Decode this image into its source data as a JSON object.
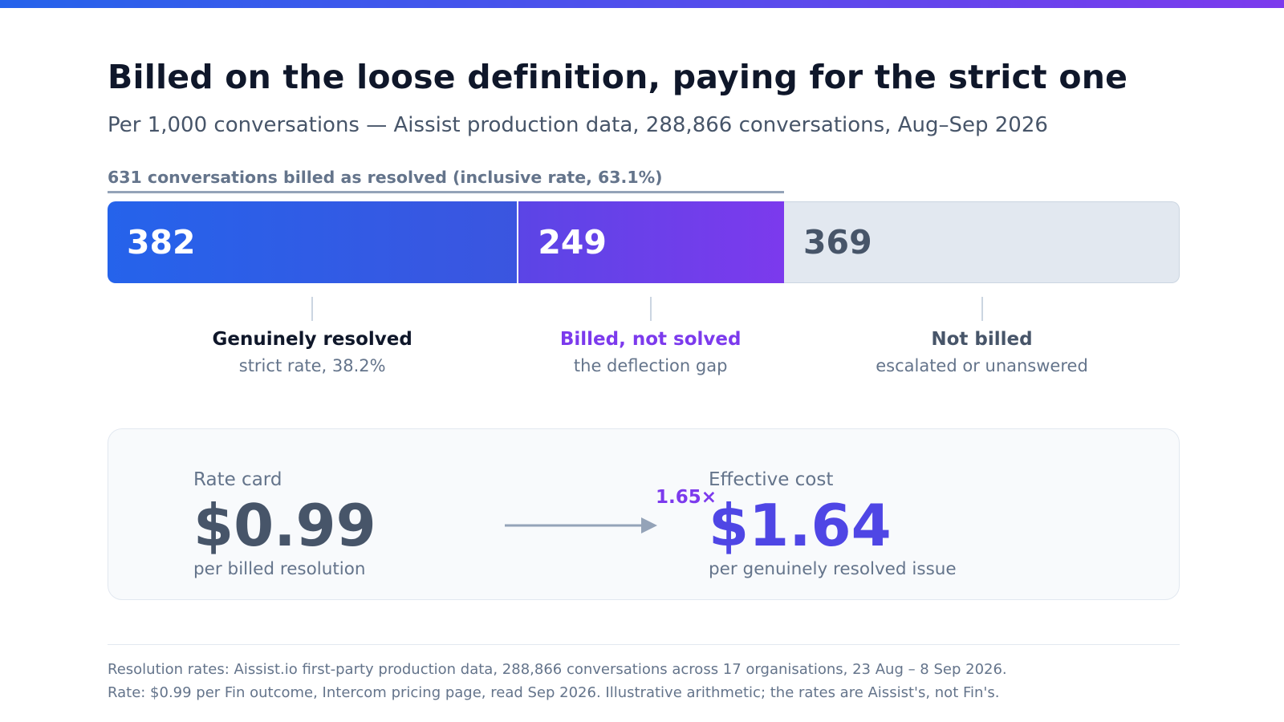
{
  "header": {
    "title": "Billed on the loose definition, paying for the strict one",
    "subtitle": "Per 1,000 conversations — Aissist production data, 288,866 conversations, Aug–Sep 2026"
  },
  "chart_data": {
    "type": "bar",
    "orientation": "horizontal-stacked",
    "total": 1000,
    "bracket": {
      "label": "631 conversations billed as resolved (inclusive rate, 63.1%)",
      "value": 631
    },
    "segments": [
      {
        "value": 382,
        "value_label": "382",
        "name": "Genuinely resolved",
        "description": "strict rate, 38.2%",
        "color": "#2563eb",
        "name_color": "#0f172a"
      },
      {
        "value": 249,
        "value_label": "249",
        "name": "Billed, not solved",
        "description": "the deflection gap",
        "color": "#7c3aed",
        "name_color": "#7c3aed"
      },
      {
        "value": 369,
        "value_label": "369",
        "name": "Not billed",
        "description": "escalated or unanswered",
        "color": "#e2e8f0",
        "name_color": "#475569"
      }
    ]
  },
  "cost_comparison": {
    "left": {
      "kicker": "Rate card",
      "value": "$0.99",
      "caption": "per billed resolution"
    },
    "multiplier": "1.65×",
    "right": {
      "kicker": "Effective cost",
      "value": "$1.64",
      "caption": "per genuinely resolved issue"
    }
  },
  "footnotes": [
    "Resolution rates: Aissist.io first-party production data, 288,866 conversations across 17 organisations, 23 Aug – 8 Sep 2026.",
    "Rate: $0.99 per Fin outcome, Intercom pricing page, read Sep 2026. Illustrative arithmetic; the rates are Aissist's, not Fin's."
  ],
  "colors": {
    "accent_blue": "#2563eb",
    "accent_purple": "#7c3aed",
    "indigo": "#4f46e5",
    "muted": "#64748b"
  }
}
